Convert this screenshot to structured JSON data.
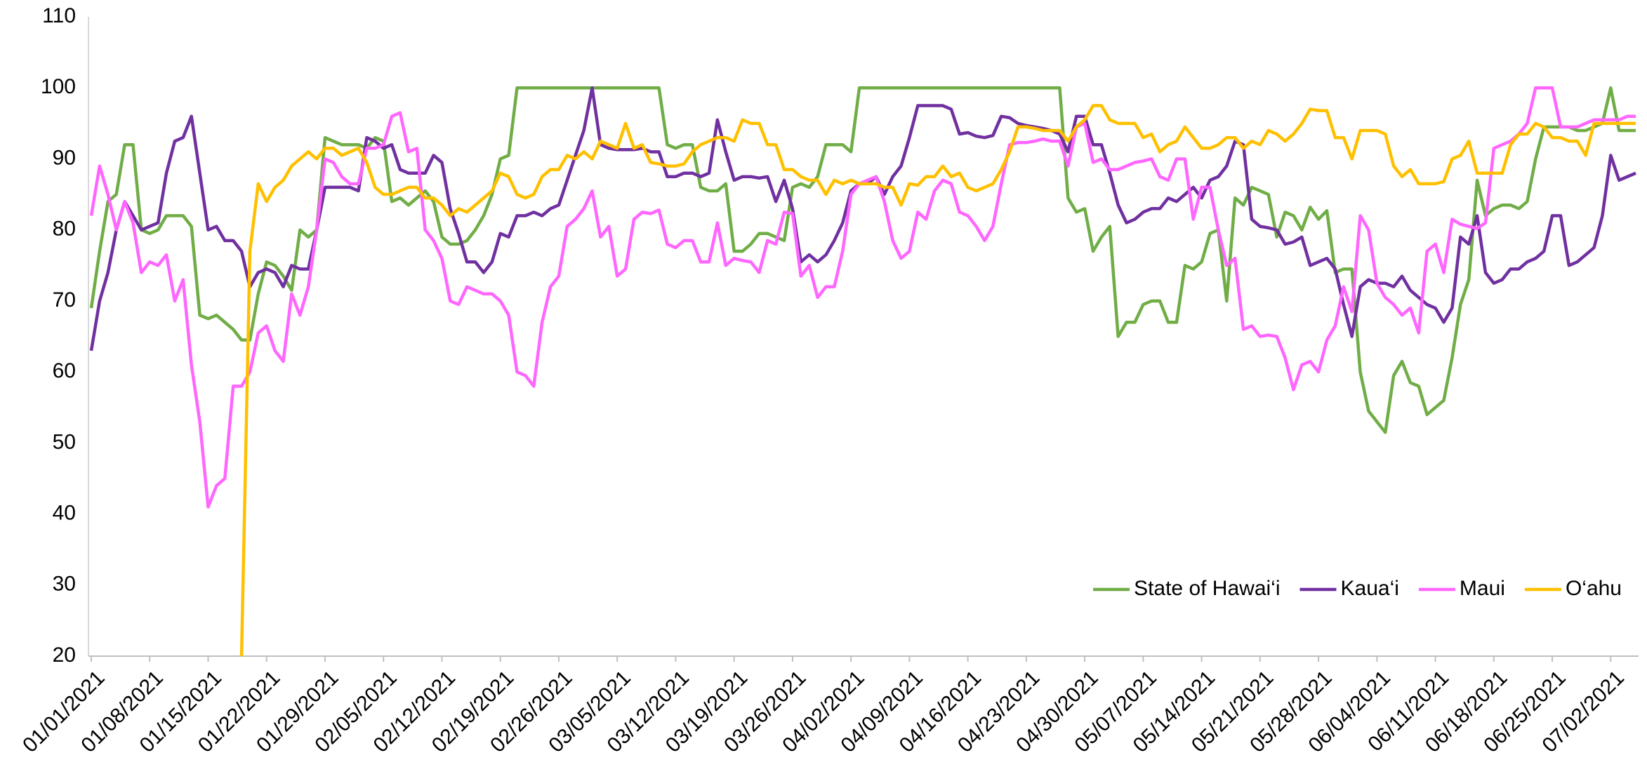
{
  "chart_data": {
    "type": "line",
    "categories": [
      "01/01/2021",
      null,
      null,
      null,
      null,
      null,
      null,
      "01/08/2021",
      null,
      null,
      null,
      null,
      null,
      null,
      "01/15/2021",
      null,
      null,
      null,
      null,
      null,
      null,
      "01/22/2021",
      null,
      null,
      null,
      null,
      null,
      null,
      "01/29/2021",
      null,
      null,
      null,
      null,
      null,
      null,
      "02/05/2021",
      null,
      null,
      null,
      null,
      null,
      null,
      "02/12/2021",
      null,
      null,
      null,
      null,
      null,
      null,
      "02/19/2021",
      null,
      null,
      null,
      null,
      null,
      null,
      "02/26/2021",
      null,
      null,
      null,
      null,
      null,
      null,
      "03/05/2021",
      null,
      null,
      null,
      null,
      null,
      null,
      "03/12/2021",
      null,
      null,
      null,
      null,
      null,
      null,
      "03/19/2021",
      null,
      null,
      null,
      null,
      null,
      null,
      "03/26/2021",
      null,
      null,
      null,
      null,
      null,
      null,
      "04/02/2021",
      null,
      null,
      null,
      null,
      null,
      null,
      "04/09/2021",
      null,
      null,
      null,
      null,
      null,
      null,
      "04/16/2021",
      null,
      null,
      null,
      null,
      null,
      null,
      "04/23/2021",
      null,
      null,
      null,
      null,
      null,
      null,
      "04/30/2021",
      null,
      null,
      null,
      null,
      null,
      null,
      "05/07/2021",
      null,
      null,
      null,
      null,
      null,
      null,
      "05/14/2021",
      null,
      null,
      null,
      null,
      null,
      null,
      "05/21/2021",
      null,
      null,
      null,
      null,
      null,
      null,
      "05/28/2021",
      null,
      null,
      null,
      null,
      null,
      null,
      "06/04/2021",
      null,
      null,
      null,
      null,
      null,
      null,
      "06/11/2021",
      null,
      null,
      null,
      null,
      null,
      null,
      "06/18/2021",
      null,
      null,
      null,
      null,
      null,
      null,
      "06/25/2021",
      null,
      null,
      null,
      null,
      null,
      null,
      "07/02/2021",
      null,
      null,
      null
    ],
    "series": [
      {
        "name": "State of Hawai‘i",
        "color": "#70ad47",
        "values": [
          69,
          77,
          84,
          85,
          92,
          92,
          80,
          79.5,
          80,
          82,
          82,
          82,
          80.5,
          68,
          67.5,
          68,
          67,
          66,
          64.5,
          64.5,
          71,
          75.5,
          75,
          73.5,
          71.5,
          80,
          79,
          80,
          93,
          92.5,
          92,
          92,
          92,
          91.5,
          93,
          92.5,
          84,
          84.5,
          83.5,
          84.5,
          85.5,
          84,
          79,
          78,
          78,
          78.5,
          80,
          82,
          85,
          90,
          90.5,
          100,
          100,
          100,
          100,
          100,
          100,
          100,
          100,
          100,
          100,
          100,
          100,
          100,
          100,
          100,
          100,
          100,
          100,
          92,
          91.5,
          92,
          92,
          86,
          85.5,
          85.5,
          86.5,
          77,
          77,
          78,
          79.5,
          79.5,
          79,
          78.5,
          86,
          86.5,
          86,
          87.5,
          92,
          92,
          92,
          91,
          100,
          100,
          100,
          100,
          100,
          100,
          100,
          100,
          100,
          100,
          100,
          100,
          100,
          100,
          100,
          100,
          100,
          100,
          100,
          100,
          100,
          100,
          100,
          100,
          100,
          84.5,
          82.5,
          83,
          77,
          79,
          80.5,
          65,
          67,
          67,
          69.5,
          70,
          70,
          67,
          67,
          75,
          74.5,
          75.5,
          79.5,
          80,
          70,
          84.5,
          83.5,
          86,
          85.5,
          85,
          79,
          82.5,
          82,
          80,
          83.2,
          81.5,
          82.7,
          74,
          74.5,
          74.5,
          60,
          54.5,
          53,
          51.5,
          59.5,
          61.5,
          58.5,
          58,
          54,
          55,
          56,
          62,
          69.5,
          73,
          87,
          82,
          83,
          83.5,
          83.5,
          83,
          84,
          90,
          94.5,
          94.5,
          94.5,
          94.5,
          94,
          94,
          94.5,
          95,
          100,
          94,
          94,
          94
        ]
      },
      {
        "name": "Kaua‘i",
        "color": "#7030a0",
        "values": [
          63,
          70,
          74,
          80,
          84,
          82,
          80,
          80.5,
          81,
          88,
          92.5,
          93,
          96,
          88,
          80,
          80.5,
          78.5,
          78.5,
          77,
          72,
          74,
          74.5,
          74,
          72,
          75,
          74.5,
          74.5,
          80,
          86,
          86,
          86,
          86,
          85.5,
          93,
          92.5,
          91.5,
          92,
          88.5,
          88,
          88,
          88,
          90.5,
          89.5,
          83,
          79.5,
          75.5,
          75.5,
          74,
          75.5,
          79.5,
          79,
          82,
          82,
          82.5,
          82,
          83,
          83.5,
          87,
          90.5,
          94,
          100,
          92,
          91.5,
          91.3,
          91.3,
          91.3,
          91.5,
          91,
          91,
          87.5,
          87.5,
          88,
          88,
          87.5,
          88,
          95.5,
          91,
          87,
          87.5,
          87.5,
          87.3,
          87.5,
          84,
          87,
          83,
          75.5,
          76.5,
          75.5,
          76.5,
          78.5,
          81,
          85.5,
          86.5,
          86.5,
          87.5,
          85,
          87.5,
          89,
          93,
          97.5,
          97.5,
          97.5,
          97.5,
          97,
          93.5,
          93.7,
          93.2,
          93,
          93.3,
          96,
          95.8,
          95,
          94.7,
          94.5,
          94.3,
          94,
          93.5,
          91,
          96,
          96,
          92,
          92,
          88,
          83.5,
          81,
          81.5,
          82.5,
          83,
          83,
          84.5,
          84,
          85,
          86,
          84.5,
          87,
          87.5,
          89,
          92.5,
          92,
          81.5,
          80.5,
          80.3,
          80,
          78,
          78.3,
          79,
          75,
          75.5,
          76,
          74.5,
          69.5,
          65,
          72,
          73,
          72.5,
          72.5,
          72,
          73.5,
          71.5,
          70.5,
          69.5,
          69,
          67,
          69,
          79,
          78,
          82,
          74,
          72.5,
          73,
          74.5,
          74.5,
          75.5,
          76,
          77,
          82,
          82,
          75,
          75.5,
          76.5,
          77.5,
          82,
          90.5,
          87,
          87.5,
          88
        ]
      },
      {
        "name": "Maui",
        "color": "#ff66ff",
        "values": [
          82,
          89,
          85,
          80,
          84,
          81,
          74,
          75.5,
          75,
          76.5,
          70,
          73,
          61,
          53,
          41,
          44,
          45,
          58,
          58,
          60,
          65.5,
          66.5,
          63,
          61.5,
          71,
          68,
          72,
          80,
          90,
          89.5,
          87.5,
          86.5,
          86.5,
          91.5,
          91.5,
          92,
          96,
          96.5,
          91,
          91.5,
          80,
          78.5,
          76,
          70,
          69.5,
          72,
          71.5,
          71,
          71,
          70,
          68,
          60,
          59.5,
          58,
          67,
          72,
          73.5,
          80.5,
          81.5,
          83,
          85.5,
          79,
          80.5,
          73.5,
          74.5,
          81.5,
          82.5,
          82.3,
          82.8,
          78,
          77.5,
          78.5,
          78.5,
          75.5,
          75.5,
          81,
          75,
          76,
          75.7,
          75.5,
          74,
          78.5,
          78,
          82.5,
          82.3,
          73.5,
          75,
          70.5,
          72,
          72,
          77,
          85,
          86.5,
          87,
          87.5,
          84,
          78.5,
          76,
          77,
          82.5,
          81.5,
          85.5,
          87,
          86.5,
          82.5,
          82,
          80.5,
          78.5,
          80.5,
          86.5,
          92,
          92.3,
          92.3,
          92.5,
          92.8,
          92.5,
          92.5,
          89,
          94.5,
          95,
          89.5,
          90,
          88.5,
          88.5,
          89,
          89.5,
          89.7,
          90,
          87.5,
          87,
          90,
          90,
          81.5,
          86,
          86,
          80,
          75,
          76,
          66,
          66.5,
          65,
          65.2,
          65,
          62,
          57.5,
          61,
          61.5,
          60,
          64.5,
          66.5,
          72,
          68.5,
          82,
          80,
          72.5,
          70.5,
          69.5,
          68,
          69,
          65.5,
          77,
          78,
          74,
          81.5,
          80.8,
          80.5,
          80.2,
          81,
          91.5,
          92,
          92.5,
          93.5,
          95,
          100,
          100,
          100,
          94.5,
          94.5,
          94.5,
          95,
          95.5,
          95.5,
          95.5,
          95.5,
          96,
          96
        ]
      },
      {
        "name": "O‘ahu",
        "color": "#ffc000",
        "values": [
          null,
          null,
          null,
          null,
          null,
          null,
          null,
          null,
          null,
          null,
          null,
          null,
          null,
          null,
          null,
          null,
          null,
          null,
          20,
          77,
          86.5,
          84,
          86,
          87,
          89,
          90,
          91,
          90,
          91.5,
          91.5,
          90.5,
          91,
          91.5,
          89.5,
          86,
          85,
          85,
          85.5,
          86,
          86,
          84.5,
          84.5,
          83.5,
          82,
          83,
          82.5,
          83.5,
          84.5,
          85.5,
          88,
          87.5,
          85,
          84.5,
          85,
          87.5,
          88.5,
          88.5,
          90.5,
          90,
          91,
          90,
          92.5,
          92,
          91.5,
          95,
          91.5,
          92,
          89.5,
          89.3,
          89,
          89,
          89.3,
          91,
          92,
          92.5,
          93,
          93,
          92.5,
          95.5,
          95,
          95,
          92,
          92,
          88.5,
          88.5,
          87.5,
          87,
          87,
          85,
          87,
          86.5,
          87,
          86.5,
          86.5,
          86.5,
          86,
          86,
          83.5,
          86.5,
          86.3,
          87.5,
          87.5,
          89,
          87.5,
          88,
          86,
          85.5,
          86,
          86.5,
          88.5,
          91,
          94.5,
          94.5,
          94.3,
          94,
          94,
          94,
          92.5,
          94.5,
          95.5,
          97.5,
          97.5,
          95.5,
          95,
          95,
          95,
          93,
          93.5,
          91,
          92,
          92.5,
          94.5,
          93,
          91.5,
          91.5,
          92,
          93,
          93,
          91.5,
          92.5,
          92,
          94,
          93.5,
          92.5,
          93.5,
          95,
          97,
          96.8,
          96.8,
          93,
          93,
          90,
          94,
          94,
          94,
          93.5,
          89,
          87.5,
          88.5,
          86.5,
          86.5,
          86.5,
          86.8,
          90,
          90.5,
          92.5,
          88,
          88,
          88,
          88,
          92,
          93.5,
          93.5,
          95,
          94.5,
          93,
          93,
          92.5,
          92.5,
          90.5,
          95,
          95,
          95,
          95,
          95,
          95
        ]
      }
    ],
    "ylim": [
      20,
      110
    ],
    "yticks": [
      20,
      30,
      40,
      50,
      60,
      70,
      80,
      90,
      100,
      110
    ],
    "grid": false,
    "legend": "lower right"
  }
}
